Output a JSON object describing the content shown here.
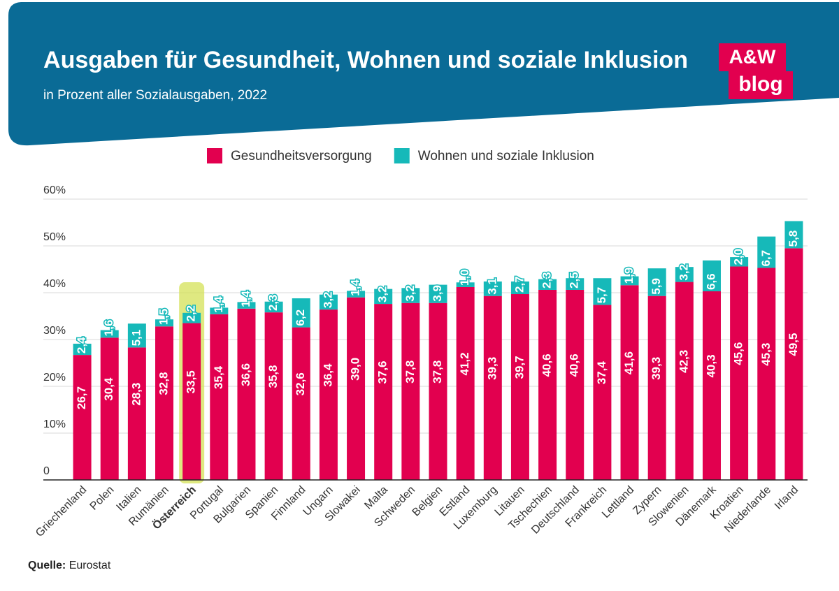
{
  "chart_data": {
    "type": "stacked_bar",
    "title": "Ausgaben für Gesundheit, Wohnen und soziale Inklusion",
    "subtitle": "in Prozent aller Sozialausgaben, 2022",
    "brand": [
      "A&W",
      "blog"
    ],
    "source_label": "Quelle:",
    "source": "Eurostat",
    "highlight": "Österreich",
    "categories": [
      "Griechenland",
      "Polen",
      "Italien",
      "Rumänien",
      "Österreich",
      "Portugal",
      "Bulgarien",
      "Spanien",
      "Finnland",
      "Ungarn",
      "Slowakei",
      "Malta",
      "Schweden",
      "Belgien",
      "Estland",
      "Luxemburg",
      "Litauen",
      "Tschechien",
      "Deutschland",
      "Frankreich",
      "Lettland",
      "Zypern",
      "Slowenien",
      "Dänemark",
      "Kroatien",
      "Niederlande",
      "Irland"
    ],
    "series": [
      {
        "name": "Gesundheitsversorgung",
        "color": "#e2004f",
        "values": [
          26.7,
          30.4,
          28.3,
          32.8,
          33.5,
          35.4,
          36.6,
          35.8,
          32.6,
          36.4,
          39.0,
          37.6,
          37.8,
          37.8,
          41.2,
          39.3,
          39.7,
          40.6,
          40.6,
          37.4,
          41.6,
          39.3,
          42.3,
          40.3,
          45.6,
          45.3,
          49.5
        ],
        "value_labels": [
          "26,7",
          "30,4",
          "28,3",
          "32,8",
          "33,5",
          "35,4",
          "36,6",
          "35,8",
          "32,6",
          "36,4",
          "39,0",
          "37,6",
          "37,8",
          "37,8",
          "41,2",
          "39,3",
          "39,7",
          "40,6",
          "40,6",
          "37,4",
          "41,6",
          "39,3",
          "42,3",
          "40,3",
          "45,6",
          "45,3",
          "49,5"
        ]
      },
      {
        "name": "Wohnen und soziale Inklusion",
        "color": "#16b9b9",
        "values": [
          2.4,
          1.6,
          5.1,
          1.5,
          2.2,
          1.4,
          1.4,
          2.3,
          6.2,
          3.2,
          1.4,
          3.2,
          3.2,
          3.9,
          1.0,
          3.1,
          2.7,
          2.3,
          2.5,
          5.7,
          1.9,
          5.9,
          3.2,
          6.6,
          2.0,
          6.7,
          5.8
        ],
        "value_labels": [
          "2,4",
          "1,6",
          "5,1",
          "1,5",
          "2,2",
          "1,4",
          "1,4",
          "2,3",
          "6,2",
          "3,2",
          "1,4",
          "3,2",
          "3,2",
          "3,9",
          "1,0",
          "3,1",
          "2,7",
          "2,3",
          "2,5",
          "5,7",
          "1,9",
          "5,9",
          "3,2",
          "6,6",
          "2,0",
          "6,7",
          "5,8"
        ]
      }
    ],
    "ylim": [
      0,
      60
    ],
    "yticks": [
      0,
      {
        "value": 10,
        "label": "10%"
      },
      {
        "value": 20,
        "label": "20%"
      },
      {
        "value": 30,
        "label": "30%"
      },
      {
        "value": 40,
        "label": "40%"
      },
      {
        "value": 50,
        "label": "50%"
      },
      {
        "value": 60,
        "label": "60%"
      }
    ],
    "grid": true,
    "legend": "top"
  }
}
